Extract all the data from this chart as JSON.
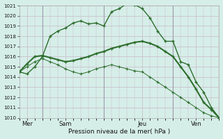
{
  "xlabel": "Pression niveau de la mer( hPa )",
  "ylim": [
    1010,
    1021
  ],
  "xlim": [
    0,
    13
  ],
  "yticks": [
    1010,
    1011,
    1012,
    1013,
    1014,
    1015,
    1016,
    1017,
    1018,
    1019,
    1020,
    1021
  ],
  "bg_color": "#d6eee8",
  "grid_color": "#c8b8c8",
  "line_color": "#2d6e2d",
  "xtick_labels": [
    "Mer",
    "Sam",
    "Jeu",
    "Ven"
  ],
  "xtick_positions": [
    0.5,
    3,
    8,
    11.5
  ],
  "vline_positions": [
    1.5,
    5.5,
    10
  ],
  "line1_x": [
    0,
    0.5,
    1,
    1.5,
    2,
    2.5,
    3,
    3.5,
    4,
    4.5,
    5,
    5.5,
    6,
    6.5,
    7,
    7.5,
    8,
    8.5,
    9,
    9.5,
    10,
    10.5,
    11,
    11.5,
    12,
    12.5,
    13
  ],
  "line1_y": [
    1014.5,
    1014.3,
    1015.0,
    1016.0,
    1018.0,
    1018.5,
    1018.8,
    1019.3,
    1019.5,
    1019.2,
    1019.3,
    1019.0,
    1020.4,
    1020.7,
    1021.2,
    1021.1,
    1020.7,
    1019.8,
    1018.5,
    1017.5,
    1017.5,
    1015.5,
    1015.2,
    1013.5,
    1012.5,
    1011.0,
    1010.0
  ],
  "line2_x": [
    0,
    0.5,
    1,
    1.5,
    2,
    2.5,
    3,
    3.5,
    4,
    4.5,
    5,
    5.5,
    6,
    6.5,
    7,
    7.5,
    8,
    8.5,
    9,
    9.5,
    10,
    10.5,
    11,
    11.5,
    12,
    12.5,
    13
  ],
  "line2_y": [
    1014.5,
    1015.3,
    1016.0,
    1016.1,
    1015.9,
    1015.7,
    1015.5,
    1015.6,
    1015.8,
    1016.0,
    1016.3,
    1016.5,
    1016.8,
    1017.0,
    1017.2,
    1017.4,
    1017.5,
    1017.3,
    1017.0,
    1016.5,
    1016.0,
    1015.0,
    1014.0,
    1012.8,
    1011.5,
    1010.8,
    1010.0
  ],
  "line3_x": [
    0,
    0.5,
    1,
    1.5,
    2,
    2.5,
    3,
    3.5,
    4,
    4.5,
    5,
    5.5,
    6,
    6.5,
    7,
    7.5,
    8,
    8.5,
    9,
    9.5,
    10,
    10.5,
    11,
    11.5,
    12,
    12.5,
    13
  ],
  "line3_y": [
    1014.5,
    1015.0,
    1015.5,
    1015.8,
    1015.5,
    1015.2,
    1014.8,
    1014.5,
    1014.3,
    1014.5,
    1014.8,
    1015.0,
    1015.2,
    1015.0,
    1014.8,
    1014.6,
    1014.5,
    1014.0,
    1013.5,
    1013.0,
    1012.5,
    1012.0,
    1011.5,
    1011.0,
    1010.5,
    1010.2,
    1010.0
  ]
}
